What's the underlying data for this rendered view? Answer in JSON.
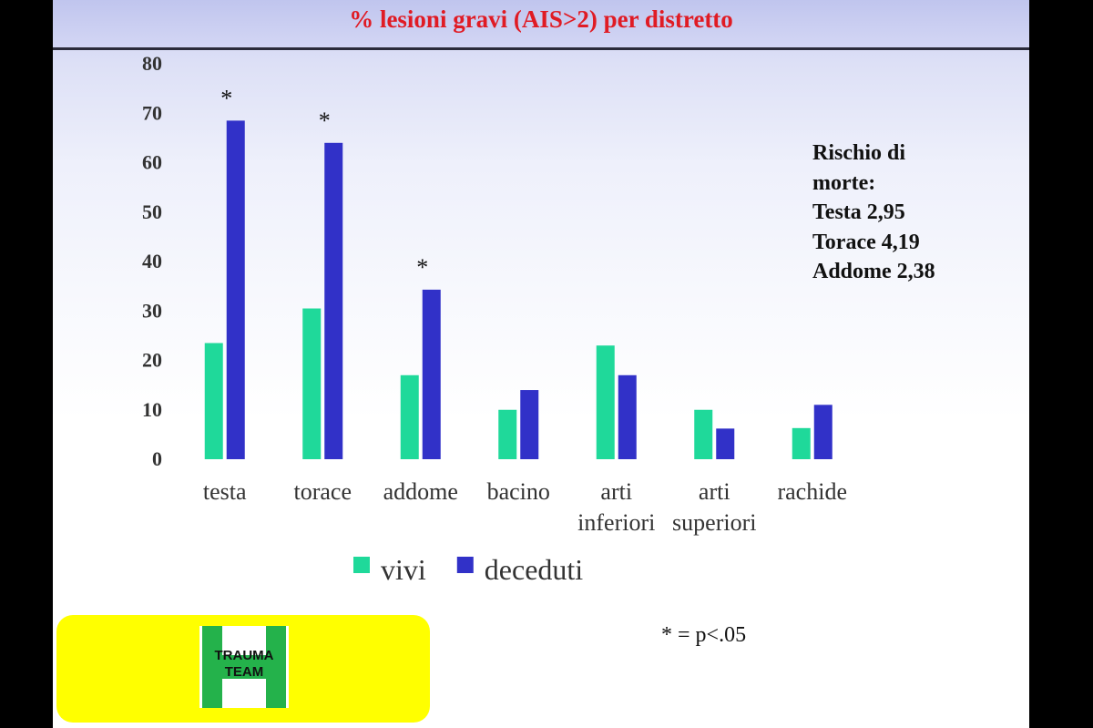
{
  "slide": {
    "title": "% lesioni gravi (AIS>2) per distretto",
    "risk_lines": [
      "Rischio di",
      "morte:",
      "Testa 2,95",
      "Torace 4,19",
      "Addome 2,38"
    ],
    "p_note": "* = p<.05",
    "logo": {
      "line1": "TRAUMA",
      "line2": "TEAM",
      "icon": "trauma-team-h-logo"
    }
  },
  "chart_data": {
    "type": "bar",
    "categories": [
      [
        "testa"
      ],
      [
        "torace"
      ],
      [
        "addome"
      ],
      [
        "bacino"
      ],
      [
        "arti",
        "inferiori"
      ],
      [
        "arti",
        "superiori"
      ],
      [
        "rachide"
      ]
    ],
    "series": [
      {
        "name": "vivi",
        "color": "#1fd99a",
        "values": [
          23.5,
          30.5,
          17,
          10,
          23,
          10,
          6.3
        ]
      },
      {
        "name": "deceduti",
        "color": "#3131c8",
        "values": [
          68.5,
          64,
          34.3,
          14,
          17,
          6.2,
          11
        ]
      }
    ],
    "ylim": [
      0,
      80
    ],
    "yticks": [
      0,
      10,
      20,
      30,
      40,
      50,
      60,
      70,
      80
    ],
    "significant": [
      "*",
      "*",
      "*",
      "",
      "",
      "",
      ""
    ],
    "grid": false,
    "legend_position": "bottom"
  }
}
